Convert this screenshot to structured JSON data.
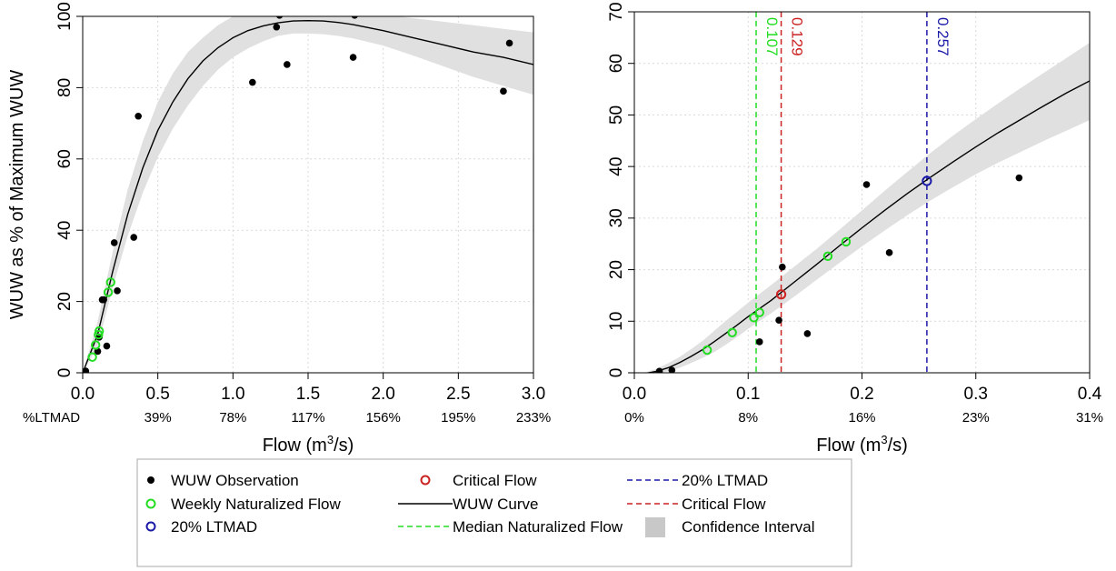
{
  "colors": {
    "observation": "#000000",
    "weekly": "#22dd22",
    "ltmad": "#1a1aa6",
    "critical": "#cc2222",
    "curve": "#000000",
    "band": "#e0e0e0",
    "grid": "#d9d9d9"
  },
  "chart_data": [
    {
      "type": "scatter",
      "ylabel": "WUW as % of Maximum WUW",
      "xlabel": "Flow (m³/s)",
      "xlabel_main": "Flow (m",
      "xlabel_sup": "3",
      "xlabel_end": "/s)",
      "xlim": [
        0,
        3
      ],
      "ylim": [
        0,
        100
      ],
      "x_ticks": [
        0,
        0.5,
        1,
        1.5,
        2,
        2.5,
        3
      ],
      "x_tick_labels": [
        "0.0",
        "0.5",
        "1.0",
        "1.5",
        "2.0",
        "2.5",
        "3.0"
      ],
      "y_ticks": [
        0,
        20,
        40,
        60,
        80,
        100
      ],
      "y_tick_labels": [
        "0",
        "20",
        "40",
        "60",
        "80",
        "100"
      ],
      "secondary_axis_title": "%LTMAD",
      "secondary_ticks": [
        0.5,
        1,
        1.5,
        2,
        2.5,
        3
      ],
      "secondary_labels": [
        "39%",
        "78%",
        "117%",
        "156%",
        "195%",
        "233%"
      ],
      "grid": true,
      "observations": {
        "x": [
          0.02,
          0.1,
          0.11,
          0.13,
          0.14,
          0.16,
          0.21,
          0.23,
          0.34,
          0.37,
          1.13,
          1.29,
          1.31,
          1.36,
          1.8,
          1.81,
          2.8,
          2.84
        ],
        "y": [
          0.5,
          6,
          10,
          20.5,
          20.5,
          7.5,
          36.5,
          23,
          38,
          72,
          81.5,
          97,
          100.3,
          86.5,
          88.5,
          100.3,
          79,
          92.5
        ]
      },
      "weekly_naturalized": {
        "x": [
          0.064,
          0.086,
          0.105,
          0.11,
          0.17,
          0.186
        ],
        "y": [
          4.4,
          7.8,
          10.7,
          11.7,
          22.6,
          25.4
        ]
      },
      "curve": {
        "x": [
          0,
          0.1,
          0.2,
          0.3,
          0.4,
          0.5,
          0.6,
          0.7,
          0.8,
          0.9,
          1.0,
          1.1,
          1.2,
          1.3,
          1.4,
          1.5,
          1.6,
          1.7,
          1.8,
          2.0,
          2.2,
          2.4,
          2.6,
          2.8,
          3.0
        ],
        "y": [
          0,
          10.8,
          28.5,
          44.5,
          57.5,
          68,
          76,
          82.5,
          87.5,
          91.2,
          94,
          96,
          97.3,
          98.2,
          98.7,
          98.8,
          98.7,
          98.3,
          97.7,
          96,
          94,
          92,
          90,
          88.5,
          86.5
        ],
        "lower": [
          0,
          7.5,
          24,
          38.5,
          50.5,
          60.5,
          68.5,
          75,
          80.5,
          85,
          88.5,
          91,
          93,
          94.5,
          95.2,
          95.2,
          95,
          94.5,
          93.8,
          91.8,
          89,
          86,
          83,
          80.5,
          78
        ],
        "upper": [
          0,
          14.5,
          34,
          51.5,
          65,
          76,
          84,
          90,
          94,
          97.5,
          100,
          101.5,
          102.5,
          102.5,
          102.5,
          102.5,
          102.2,
          102,
          101.8,
          100.5,
          99.5,
          98.5,
          97.5,
          96.5,
          95.5
        ]
      }
    },
    {
      "type": "scatter",
      "xlabel": "Flow (m³/s)",
      "xlabel_main": "Flow (m",
      "xlabel_sup": "3",
      "xlabel_end": "/s)",
      "xlim": [
        0,
        0.4
      ],
      "ylim": [
        0,
        70
      ],
      "x_ticks": [
        0,
        0.1,
        0.2,
        0.3,
        0.4
      ],
      "x_tick_labels": [
        "0.0",
        "0.1",
        "0.2",
        "0.3",
        "0.4"
      ],
      "y_ticks": [
        0,
        10,
        20,
        30,
        40,
        50,
        60,
        70
      ],
      "y_tick_labels": [
        "0",
        "10",
        "20",
        "30",
        "40",
        "50",
        "60",
        "70"
      ],
      "secondary_ticks": [
        0,
        0.1,
        0.2,
        0.3,
        0.4
      ],
      "secondary_labels": [
        "0%",
        "8%",
        "16%",
        "23%",
        "31%"
      ],
      "grid": true,
      "observations": {
        "x": [
          0.022,
          0.033,
          0.11,
          0.127,
          0.13,
          0.152,
          0.204,
          0.224,
          0.338
        ],
        "y": [
          0.3,
          0.5,
          6,
          10.2,
          20.5,
          7.6,
          36.5,
          23.3,
          37.8
        ]
      },
      "weekly_naturalized": {
        "x": [
          0.064,
          0.086,
          0.105,
          0.11,
          0.17,
          0.186
        ],
        "y": [
          4.4,
          7.8,
          10.7,
          11.7,
          22.6,
          25.4
        ]
      },
      "critical_point": {
        "x": 0.129,
        "y": 15.2
      },
      "ltmad_point": {
        "x": 0.257,
        "y": 37.2
      },
      "vlines": [
        {
          "name": "median-naturalized-flow",
          "x": 0.107,
          "label": "0.107",
          "color": "#22dd22"
        },
        {
          "name": "critical-flow",
          "x": 0.129,
          "label": "0.129",
          "color": "#cc2222"
        },
        {
          "name": "ltmad-20",
          "x": 0.257,
          "label": "0.257",
          "color": "#1a1aa6"
        }
      ],
      "curve": {
        "x": [
          0,
          0.01,
          0.02,
          0.03,
          0.04,
          0.05,
          0.06,
          0.07,
          0.08,
          0.09,
          0.1,
          0.12,
          0.14,
          0.16,
          0.18,
          0.2,
          0.22,
          0.24,
          0.26,
          0.28,
          0.3,
          0.32,
          0.34,
          0.36,
          0.38,
          0.4
        ],
        "y": [
          -0.3,
          -0.1,
          0.3,
          1,
          2,
          3.2,
          4.5,
          6,
          7.6,
          9.2,
          10.9,
          14,
          17.5,
          21,
          24.6,
          28.1,
          31.5,
          34.8,
          37.9,
          40.9,
          43.8,
          46.6,
          49.2,
          51.8,
          54.3,
          56.6
        ],
        "lower": [
          -0.3,
          -0.3,
          -0.1,
          0.3,
          1,
          1.9,
          2.9,
          4,
          5.4,
          6.9,
          8.5,
          11.5,
          14.7,
          18,
          21.3,
          24.5,
          27.6,
          30.6,
          33.4,
          36,
          38.5,
          40.8,
          42.9,
          45,
          47,
          49
        ],
        "upper": [
          -0.3,
          0.1,
          0.8,
          1.9,
          3.1,
          4.6,
          6.2,
          8.1,
          10,
          11.8,
          13.6,
          17,
          20.5,
          24,
          27.7,
          31.5,
          35.3,
          39,
          42.6,
          46,
          49.2,
          52.3,
          55.3,
          58.2,
          61.1,
          64
        ]
      }
    }
  ],
  "legend": {
    "col1": [
      {
        "key": "obs",
        "label": "WUW Observation"
      },
      {
        "key": "weekly",
        "label": "Weekly Naturalized Flow"
      },
      {
        "key": "ltmad_pt",
        "label": "20% LTMAD"
      }
    ],
    "col2": [
      {
        "key": "crit_pt",
        "label": "Critical Flow"
      },
      {
        "key": "curve",
        "label": "WUW Curve"
      },
      {
        "key": "median_line",
        "label": "Median Naturalized Flow"
      }
    ],
    "col3": [
      {
        "key": "ltmad_line",
        "label": "20% LTMAD"
      },
      {
        "key": "crit_line",
        "label": "Critical Flow"
      },
      {
        "key": "band",
        "label": "Confidence Interval"
      }
    ]
  }
}
